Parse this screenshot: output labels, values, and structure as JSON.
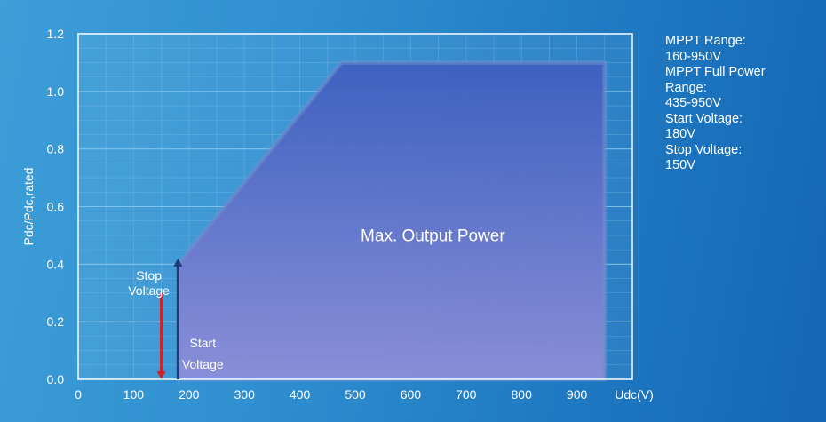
{
  "chart_data": {
    "type": "area",
    "title": "",
    "xlabel": "Udc(V)",
    "ylabel": "Pdc/Pdc,rated",
    "xlim": [
      0,
      1000
    ],
    "ylim": [
      0,
      1.2
    ],
    "x_ticks": [
      0,
      100,
      200,
      300,
      400,
      500,
      600,
      700,
      800,
      900
    ],
    "y_ticks": [
      "0.0",
      "0.2",
      "0.4",
      "0.6",
      "0.8",
      "1.0",
      "1.2"
    ],
    "grid": true,
    "series": [
      {
        "name": "Max. Output Power",
        "x": [
          180,
          180,
          475,
          950,
          950
        ],
        "y": [
          0,
          0.4,
          1.1,
          1.1,
          0
        ]
      }
    ],
    "annotations": [
      {
        "label_lines": [
          "Stop",
          "Voltage"
        ],
        "x": 150,
        "arrow": "down",
        "color": "#d0202a",
        "from_y": 0.3,
        "to_y": 0.0
      },
      {
        "label_lines": [
          "Start",
          "Voltage"
        ],
        "x": 180,
        "arrow": "up",
        "color": "#1a3a78",
        "from_y": 0.0,
        "to_y": 0.42
      }
    ]
  },
  "info_panel": {
    "lines": [
      "MPPT Range:",
      "160-950V",
      "MPPT Full Power",
      "Range:",
      "435-950V",
      "Start Voltage:",
      "180V",
      "Stop Voltage:",
      "150V"
    ]
  },
  "colors": {
    "grid": "#8cc8ec",
    "frame": "#ffffff",
    "tick_text": "#ffffff",
    "area_top": "#3d5fbe",
    "area_bottom": "#8e8ed8",
    "stop_arrow": "#d0202a",
    "start_arrow": "#1a3a78"
  }
}
